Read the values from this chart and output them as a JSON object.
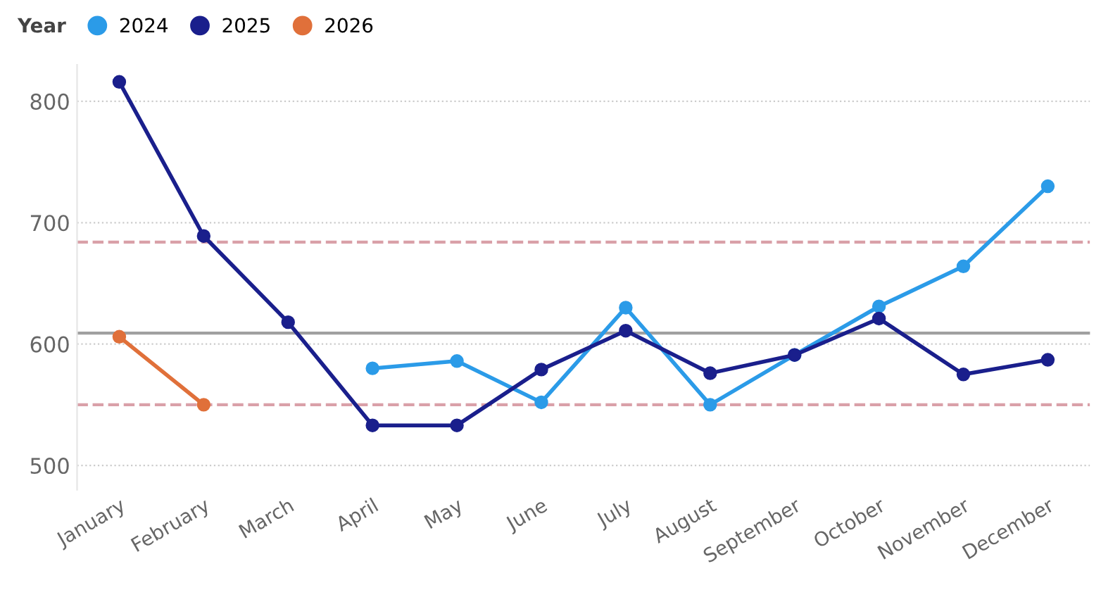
{
  "chart_data": {
    "type": "line",
    "legend_title": "Year",
    "legend": "top left",
    "grid": "y",
    "marker": "circle",
    "line_style": "solid",
    "categories": [
      "January",
      "February",
      "March",
      "April",
      "May",
      "June",
      "July",
      "August",
      "September",
      "October",
      "November",
      "December"
    ],
    "series": [
      {
        "name": "2024",
        "color": "#2b9be8",
        "values": [
          null,
          null,
          null,
          580,
          586,
          552,
          630,
          550,
          591,
          631,
          664,
          730
        ]
      },
      {
        "name": "2025",
        "color": "#1a1f8c",
        "values": [
          816,
          689,
          618,
          533,
          533,
          579,
          611,
          576,
          591,
          621,
          575,
          587
        ]
      },
      {
        "name": "2026",
        "color": "#e0703a",
        "values": [
          606,
          550,
          null,
          null,
          null,
          null,
          null,
          null,
          null,
          null,
          null,
          null
        ]
      }
    ],
    "ylim": [
      480,
      830
    ],
    "yticks": [
      500,
      600,
      700,
      800
    ],
    "ref_lines": [
      {
        "axis": "y",
        "value": 609,
        "color": "#a0a0a0",
        "line_style": "solid"
      },
      {
        "axis": "y",
        "value": 684,
        "color": "#d9a0a8",
        "line_style": "dashed"
      },
      {
        "axis": "y",
        "value": 550,
        "color": "#d9a0a8",
        "line_style": "dashed"
      }
    ]
  }
}
